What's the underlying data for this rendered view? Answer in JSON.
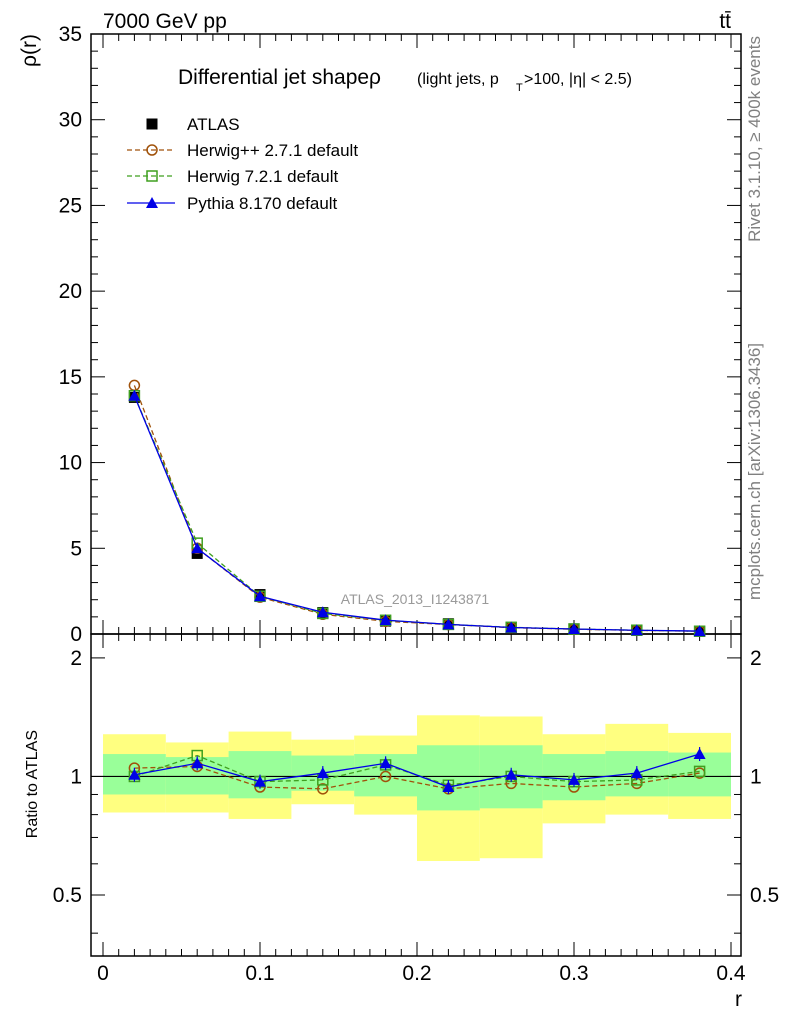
{
  "header": {
    "left": "7000 GeV pp",
    "right": "tt̄"
  },
  "side": {
    "rivet": "Rivet 3.1.10, ≥ 400k events",
    "mcplots": "mcplots.cern.ch [arXiv:1306.3436]"
  },
  "chart_data": {
    "type": "line",
    "title": "Differential jet shapeρ",
    "title_sub_a": "(light jets, p",
    "title_sub_b": "T",
    "title_sub_c": ">100, |η| < 2.5)",
    "ylabel": "ρ(r)",
    "xlabel": "r",
    "ratio_ylabel": "Ratio to ATLAS",
    "watermark": "ATLAS_2013_I1243871",
    "xlim": [
      0,
      0.4
    ],
    "ylim": [
      0,
      35
    ],
    "ratio_ylim": [
      0.35,
      2.3
    ],
    "ratio_log": true,
    "x_ticks": [
      0,
      0.1,
      0.2,
      0.3,
      0.4
    ],
    "x_tick_labels": [
      "0",
      "0.1",
      "0.2",
      "0.3",
      "0.4"
    ],
    "y_ticks": [
      0,
      5,
      10,
      15,
      20,
      25,
      30,
      35
    ],
    "y_tick_labels": [
      "0",
      "5",
      "10",
      "15",
      "20",
      "25",
      "30",
      "35"
    ],
    "ratio_ticks": [
      0.5,
      1,
      2
    ],
    "ratio_tick_labels": [
      "0.5",
      "1",
      "2"
    ],
    "x": [
      0.02,
      0.06,
      0.1,
      0.14,
      0.18,
      0.22,
      0.26,
      0.3,
      0.34,
      0.38
    ],
    "bin_edges": [
      0.0,
      0.04,
      0.08,
      0.12,
      0.16,
      0.2,
      0.24,
      0.28,
      0.32,
      0.36,
      0.4
    ],
    "series": [
      {
        "name": "ATLAS",
        "color": "#000000",
        "marker": "square-filled",
        "values": [
          13.8,
          4.7,
          2.3,
          1.25,
          0.75,
          0.6,
          0.38,
          0.3,
          0.22,
          0.16
        ]
      },
      {
        "name": "Herwig++ 2.7.1 default",
        "color": "#a0520a",
        "marker": "circle-open",
        "dash": true,
        "values": [
          14.5,
          5.0,
          2.15,
          1.15,
          0.74,
          0.55,
          0.37,
          0.28,
          0.21,
          0.16
        ],
        "ratio": [
          1.05,
          1.06,
          0.94,
          0.93,
          1.0,
          0.93,
          0.96,
          0.94,
          0.96,
          1.02
        ]
      },
      {
        "name": "Herwig 7.2.1 default",
        "color": "#3f9f1f",
        "marker": "square-open",
        "dash": true,
        "values": [
          13.9,
          5.3,
          2.2,
          1.2,
          0.8,
          0.56,
          0.39,
          0.29,
          0.22,
          0.16
        ],
        "ratio": [
          1.0,
          1.13,
          0.97,
          0.98,
          1.07,
          0.95,
          1.0,
          0.97,
          0.98,
          1.03
        ]
      },
      {
        "name": "Pythia 8.170 default",
        "color": "#0000e6",
        "marker": "triangle-filled",
        "values": [
          13.9,
          5.0,
          2.2,
          1.27,
          0.81,
          0.56,
          0.38,
          0.29,
          0.22,
          0.17
        ],
        "ratio": [
          1.01,
          1.08,
          0.97,
          1.02,
          1.08,
          0.94,
          1.01,
          0.98,
          1.02,
          1.14
        ]
      }
    ],
    "bands": {
      "yellow": {
        "color": "#ffff80",
        "lo": [
          0.81,
          0.81,
          0.78,
          0.85,
          0.8,
          0.61,
          0.62,
          0.76,
          0.8,
          0.78
        ],
        "hi": [
          1.28,
          1.22,
          1.3,
          1.24,
          1.27,
          1.43,
          1.42,
          1.28,
          1.36,
          1.29
        ]
      },
      "green": {
        "color": "#99ff99",
        "lo": [
          0.9,
          0.9,
          0.88,
          0.92,
          0.89,
          0.82,
          0.83,
          0.87,
          0.89,
          0.89
        ],
        "hi": [
          1.14,
          1.12,
          1.16,
          1.13,
          1.14,
          1.2,
          1.2,
          1.14,
          1.16,
          1.15
        ]
      }
    }
  }
}
